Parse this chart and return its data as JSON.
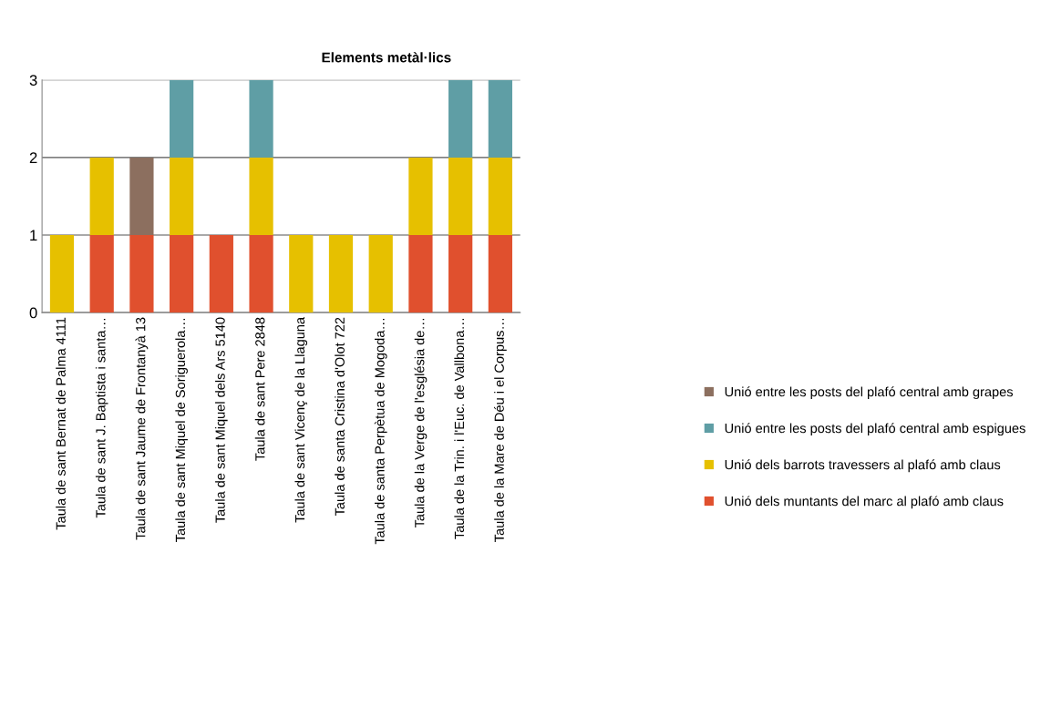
{
  "chart_data": {
    "type": "bar",
    "title": "Elements metàl·lics",
    "stacked": true,
    "categories": [
      "Taula de sant Bernat de Palma 4111",
      "Taula de sant J. Baptista i santa…",
      "Taula de sant Jaume de Frontanyà 13",
      "Taula de sant Miquel de Soriguerola…",
      "Taula de sant Miquel dels Ars 5140",
      "Taula de sant Pere 2848",
      "Taula de sant Vicenç de la Llaguna",
      "Taula de santa Cristina d'Olot 722",
      "Taula de santa Perpètua de Mogoda…",
      "Taula de la Verge de l'església de…",
      "Taula de la Trin. i l'Euc. de Vallbona…",
      "Taula de la Mare de Déu i el Corpus…"
    ],
    "series": [
      {
        "name": "Unió dels muntants del marc al plafó amb claus",
        "color": "#e0502e",
        "values": [
          0,
          1,
          1,
          1,
          1,
          1,
          0,
          0,
          0,
          1,
          1,
          1
        ]
      },
      {
        "name": "Unió dels barrots travessers al plafó amb claus",
        "color": "#e6c000",
        "values": [
          1,
          1,
          0,
          1,
          0,
          1,
          1,
          1,
          1,
          1,
          1,
          1
        ]
      },
      {
        "name": "Unió entre les posts del plafó central amb espigues",
        "color": "#5f9ea5",
        "values": [
          0,
          0,
          0,
          1,
          0,
          1,
          0,
          0,
          0,
          0,
          1,
          1
        ]
      },
      {
        "name": "Unió entre les posts del plafó central amb grapes",
        "color": "#8c6f5f",
        "values": [
          0,
          0,
          1,
          0,
          0,
          0,
          0,
          0,
          0,
          0,
          0,
          0
        ]
      }
    ],
    "ylim": [
      0,
      3
    ],
    "yticks": [
      0,
      1,
      2,
      3
    ],
    "grid": "y",
    "legend": "right"
  }
}
